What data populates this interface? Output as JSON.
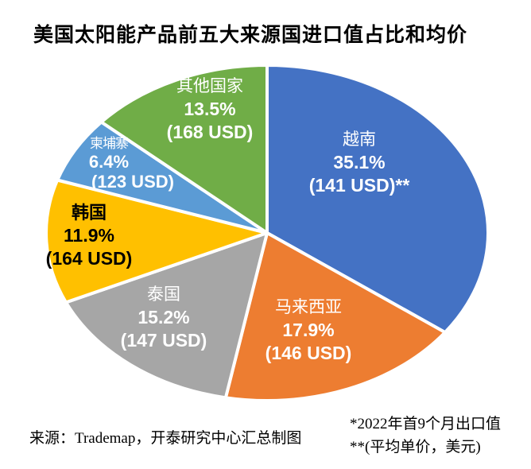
{
  "title": "美国太阳能产品前五大来源国进口值占比和均价",
  "source": "来源：Trademap，开泰研究中心汇总制图",
  "footnotes": {
    "line1": "*2022年首9个月出口值",
    "line2": "**(平均单价，美元)"
  },
  "chart_data": {
    "type": "pie",
    "title": "美国太阳能产品前五大来源国进口值占比和均价",
    "value_unit": "percent of US solar product import value",
    "price_unit": "USD average unit price",
    "start_angle_deg": 0,
    "direction": "clockwise",
    "slices": [
      {
        "id": "vietnam",
        "label": "越南",
        "value_pct": 35.1,
        "pct_label": "35.1%",
        "avg_price_usd": 141,
        "price_label": "(141 USD)**",
        "color": "#4472c4",
        "text_color": "#ffffff"
      },
      {
        "id": "malaysia",
        "label": "马来西亚",
        "value_pct": 17.9,
        "pct_label": "17.9%",
        "avg_price_usd": 146,
        "price_label": "(146 USD)",
        "color": "#ed7d31",
        "text_color": "#ffffff"
      },
      {
        "id": "thailand",
        "label": "泰国",
        "value_pct": 15.2,
        "pct_label": "15.2%",
        "avg_price_usd": 147,
        "price_label": "(147 USD)",
        "color": "#a6a6a6",
        "text_color": "#ffffff"
      },
      {
        "id": "south-korea",
        "label": "韩国",
        "value_pct": 11.9,
        "pct_label": "11.9%",
        "avg_price_usd": 164,
        "price_label": "(164 USD)",
        "color": "#ffc000",
        "text_color": "#000000"
      },
      {
        "id": "cambodia",
        "label": "柬埔寨",
        "value_pct": 6.4,
        "pct_label": "6.4%",
        "avg_price_usd": 123,
        "price_label": "(123 USD)",
        "color": "#5b9bd5",
        "text_color": "#ffffff"
      },
      {
        "id": "other-countries",
        "label": "其他国家",
        "value_pct": 13.5,
        "pct_label": "13.5%",
        "avg_price_usd": 168,
        "price_label": "(168 USD)",
        "color": "#70ad47",
        "text_color": "#ffffff"
      }
    ]
  }
}
